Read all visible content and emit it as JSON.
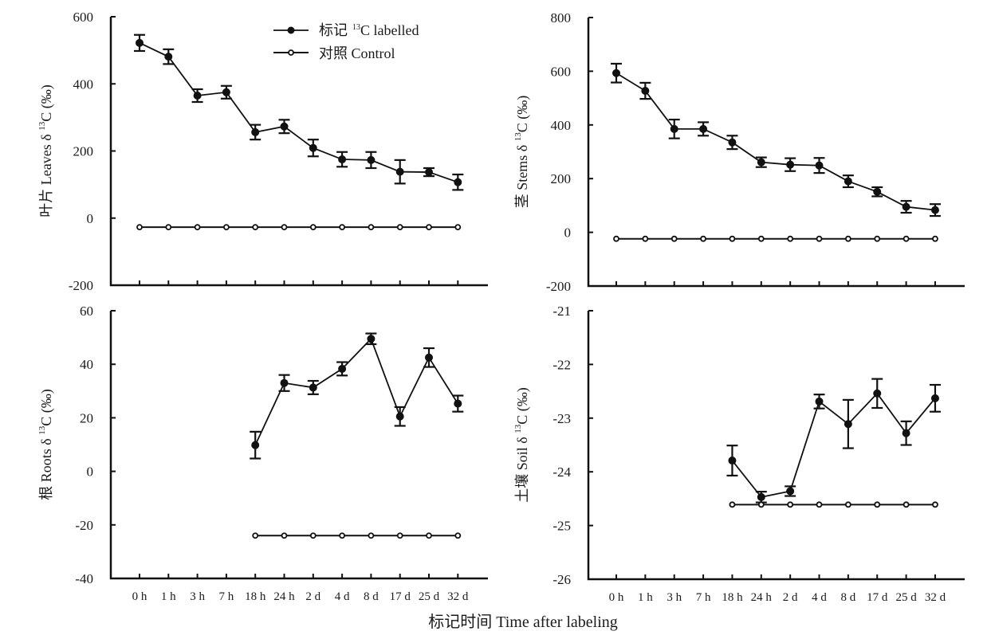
{
  "chart_data": {
    "type": "line",
    "x_title": "标记时间 Time after labeling",
    "categories": [
      "0 h",
      "1 h",
      "3 h",
      "7 h",
      "18 h",
      "24 h",
      "2 d",
      "4 d",
      "8 d",
      "17 d",
      "25 d",
      "32 d"
    ],
    "legend": {
      "placement": "top-right of first panel",
      "entries": [
        {
          "key": "labelled",
          "label_cn": "标记",
          "label_sup": "13",
          "label_en": "C labelled",
          "marker": "filled-circle"
        },
        {
          "key": "control",
          "label": "对照 Control",
          "marker": "open-circle"
        }
      ]
    },
    "panels": [
      {
        "id": "leaves",
        "ylabel_cn": "叶片 Leaves δ",
        "ylabel_sup": "13",
        "ylabel_rest": "C (‰)",
        "ylim": [
          -200,
          600
        ],
        "yticks": [
          600,
          400,
          200,
          0,
          -200
        ],
        "show_xtick_labels": false,
        "series": [
          {
            "name": "标记 13C labelled",
            "start_index": 0,
            "values": [
              522,
              481,
              365,
              375,
              256,
              273,
              209,
              175,
              173,
              138,
              137,
              107
            ],
            "errors": [
              24,
              22,
              19,
              19,
              22,
              20,
              25,
              22,
              24,
              35,
              12,
              23
            ]
          },
          {
            "name": "对照 Control",
            "start_index": 0,
            "values": [
              -27,
              -27,
              -27,
              -27,
              -27,
              -27,
              -27,
              -27,
              -27,
              -27,
              -27,
              -27
            ]
          }
        ]
      },
      {
        "id": "stems",
        "ylabel_cn": "茎 Stems δ",
        "ylabel_sup": "13",
        "ylabel_rest": "C (‰)",
        "ylim": [
          -200,
          800
        ],
        "yticks": [
          800,
          600,
          400,
          200,
          0,
          -200
        ],
        "show_xtick_labels": false,
        "series": [
          {
            "name": "标记 13C labelled",
            "start_index": 0,
            "values": [
              593,
              527,
              385,
              385,
              335,
              261,
              252,
              249,
              190,
              151,
              95,
              83
            ],
            "errors": [
              35,
              30,
              35,
              25,
              25,
              18,
              24,
              28,
              22,
              17,
              22,
              22
            ]
          },
          {
            "name": "对照 Control",
            "start_index": 0,
            "values": [
              -24,
              -24,
              -24,
              -24,
              -24,
              -24,
              -24,
              -24,
              -24,
              -24,
              -24,
              -24
            ]
          }
        ]
      },
      {
        "id": "roots",
        "ylabel_cn": "根 Roots δ",
        "ylabel_sup": "13",
        "ylabel_rest": "C (‰)",
        "ylim": [
          -40,
          60
        ],
        "yticks": [
          60,
          40,
          20,
          0,
          -20,
          -40
        ],
        "show_xtick_labels": true,
        "series": [
          {
            "name": "标记 13C labelled",
            "start_index": 4,
            "values": [
              9.8,
              33.0,
              31.3,
              38.3,
              49.5,
              20.5,
              42.5,
              25.3
            ],
            "errors": [
              5.0,
              3.0,
              2.5,
              2.5,
              2.0,
              3.5,
              3.5,
              3.0
            ]
          },
          {
            "name": "对照 Control",
            "start_index": 4,
            "values": [
              -24,
              -24,
              -24,
              -24,
              -24,
              -24,
              -24,
              -24
            ]
          }
        ]
      },
      {
        "id": "soil",
        "ylabel_cn": "土壤 Soil δ",
        "ylabel_sup": "13",
        "ylabel_rest": "C (‰)",
        "ylim": [
          -26,
          -21
        ],
        "yticks": [
          -21,
          -22,
          -23,
          -24,
          -25,
          -26
        ],
        "show_xtick_labels": true,
        "series": [
          {
            "name": "标记 13C labelled",
            "start_index": 4,
            "values": [
              -23.79,
              -24.47,
              -24.36,
              -22.69,
              -23.11,
              -22.54,
              -23.28,
              -22.63
            ],
            "errors": [
              0.28,
              0.1,
              0.09,
              0.13,
              0.45,
              0.27,
              0.22,
              0.25
            ]
          },
          {
            "name": "对照 Control",
            "start_index": 4,
            "values": [
              -24.61,
              -24.61,
              -24.61,
              -24.61,
              -24.61,
              -24.61,
              -24.61,
              -24.61
            ]
          }
        ]
      }
    ]
  }
}
